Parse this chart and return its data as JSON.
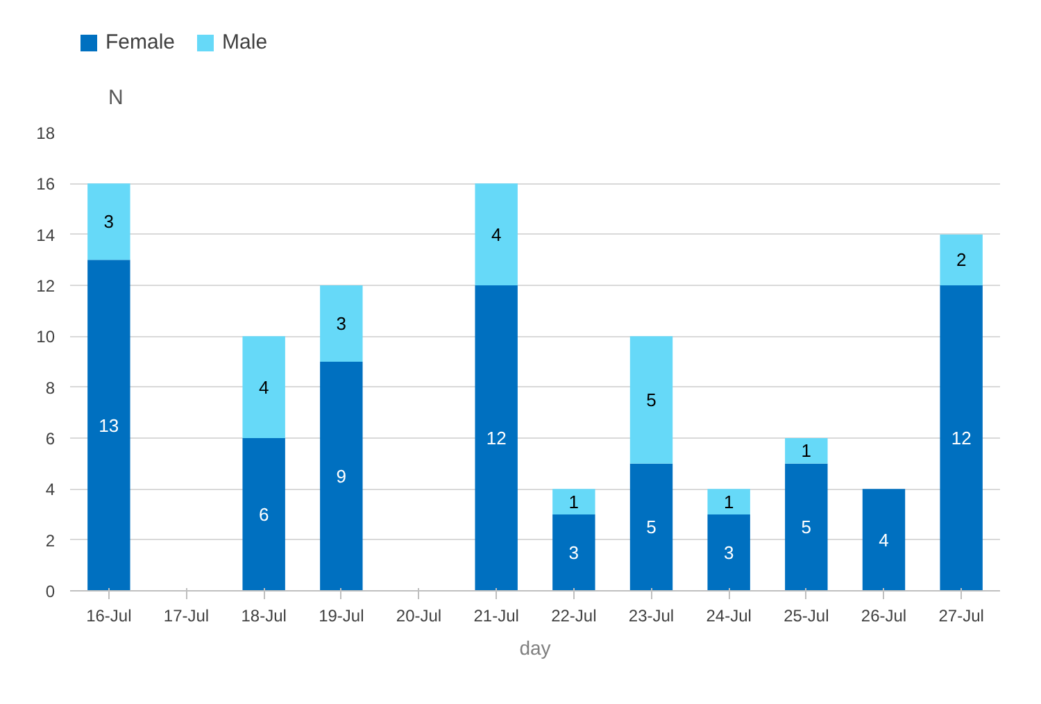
{
  "chart_data": {
    "type": "bar",
    "stacked": true,
    "xlabel": "day",
    "ylabel": "N",
    "categories": [
      "16-Jul",
      "17-Jul",
      "18-Jul",
      "19-Jul",
      "20-Jul",
      "21-Jul",
      "22-Jul",
      "23-Jul",
      "24-Jul",
      "25-Jul",
      "26-Jul",
      "27-Jul"
    ],
    "series": [
      {
        "name": "Female",
        "color": "#0070c0",
        "values": [
          13,
          0,
          6,
          9,
          0,
          12,
          3,
          5,
          3,
          5,
          4,
          12
        ],
        "value_labels": [
          "13",
          null,
          "6",
          "9",
          null,
          "12",
          "3",
          "5",
          "3",
          "5",
          "4",
          "12"
        ]
      },
      {
        "name": "Male",
        "color": "#66d9f8",
        "values": [
          3,
          0,
          4,
          3,
          0,
          4,
          1,
          5,
          1,
          1,
          0,
          2
        ],
        "value_labels": [
          "3",
          null,
          "4",
          "3",
          null,
          "4",
          "1",
          "5",
          "1",
          "1",
          null,
          "2"
        ]
      }
    ],
    "ylim": [
      0,
      18
    ],
    "yticks": [
      0,
      2,
      4,
      6,
      8,
      10,
      12,
      14,
      16,
      18
    ],
    "grid": "y",
    "legend": "top left"
  }
}
